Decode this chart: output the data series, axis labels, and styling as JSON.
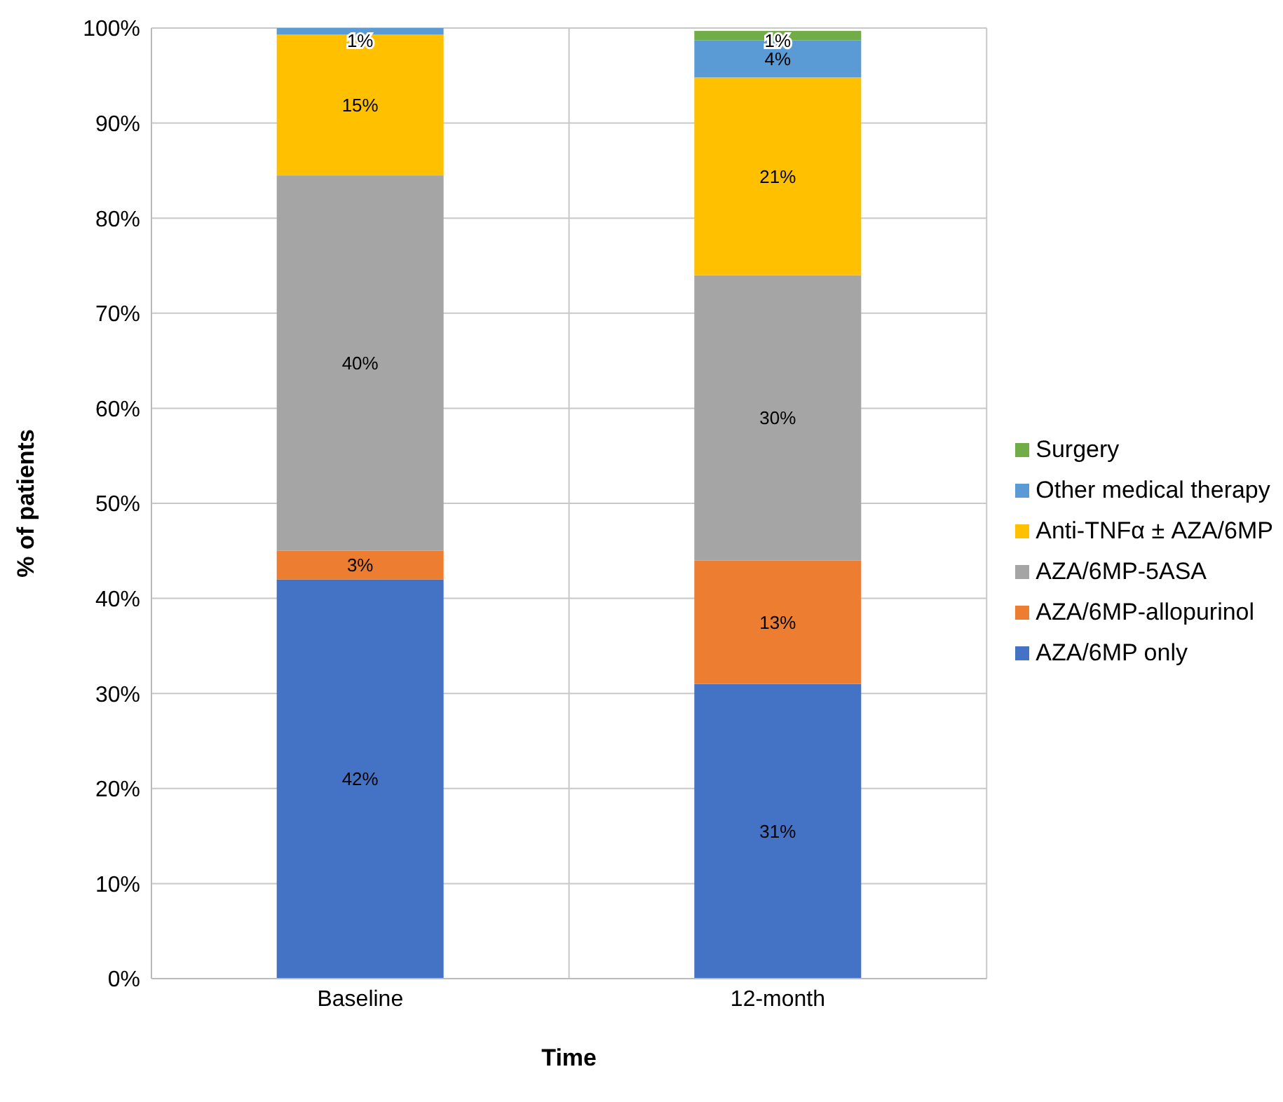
{
  "chart_data": {
    "type": "bar",
    "stacked": true,
    "xlabel": "Time",
    "ylabel": "% of patients",
    "categories": [
      "Baseline",
      "12-month"
    ],
    "series": [
      {
        "name": "AZA/6MP only",
        "color": "#4472c4",
        "values": [
          42,
          31
        ],
        "value_labels": [
          "42%",
          "31%"
        ]
      },
      {
        "name": "AZA/6MP-allopurinol",
        "color": "#ed7d31",
        "values": [
          3,
          13
        ],
        "value_labels": [
          "3%",
          "13%"
        ]
      },
      {
        "name": "AZA/6MP-5ASA",
        "color": "#a5a5a5",
        "values": [
          39.5,
          30
        ],
        "value_labels": [
          "40%",
          "30%"
        ]
      },
      {
        "name": "Anti-TNFα ± AZA/6MP",
        "color": "#ffc000",
        "values": [
          14.8,
          20.8
        ],
        "value_labels": [
          "15%",
          "21%"
        ]
      },
      {
        "name": "Other medical therapy",
        "color": "#5b9bd5",
        "values": [
          0.7,
          3.9
        ],
        "value_labels": [
          "1%",
          "4%"
        ]
      },
      {
        "name": "Surgery",
        "color": "#70ad47",
        "values": [
          null,
          1
        ],
        "value_labels": [
          null,
          "1%"
        ]
      }
    ],
    "ylim": [
      0,
      100
    ],
    "yticks": [
      {
        "value": 0,
        "label": "0%"
      },
      {
        "value": 10,
        "label": "10%"
      },
      {
        "value": 20,
        "label": "20%"
      },
      {
        "value": 30,
        "label": "30%"
      },
      {
        "value": 40,
        "label": "40%"
      },
      {
        "value": 50,
        "label": "50%"
      },
      {
        "value": 60,
        "label": "60%"
      },
      {
        "value": 70,
        "label": "70%"
      },
      {
        "value": 80,
        "label": "80%"
      },
      {
        "value": 90,
        "label": "90%"
      },
      {
        "value": 100,
        "label": "100%"
      }
    ],
    "grid": true,
    "legend": "right"
  }
}
